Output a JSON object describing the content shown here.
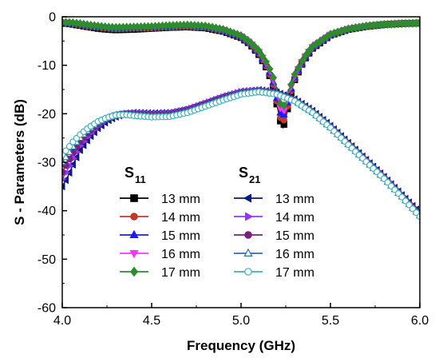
{
  "chart_data": {
    "type": "line",
    "title": "",
    "xlabel": "Frequency (GHz)",
    "ylabel": "S - Parameters (dB)",
    "xlim": [
      4.0,
      6.0
    ],
    "ylim": [
      -60,
      0
    ],
    "xticks": [
      4.0,
      4.5,
      5.0,
      5.5,
      6.0
    ],
    "xtick_labels": [
      "4.0",
      "4.5",
      "5.0",
      "5.5",
      "6.0"
    ],
    "yticks": [
      0,
      -10,
      -20,
      -30,
      -40,
      -50,
      -60
    ],
    "ytick_labels": [
      "0",
      "-10",
      "-20",
      "-30",
      "-40",
      "-50",
      "-60"
    ],
    "grid": false,
    "legend_position": "lower-center",
    "legend_groups": [
      {
        "title_main": "S",
        "title_sub": "11"
      },
      {
        "title_main": "S",
        "title_sub": "21"
      }
    ],
    "series": [
      {
        "name": "13 mm",
        "group": "S11",
        "color": "#000000",
        "marker": "square",
        "fill": true,
        "points": [
          [
            4.0,
            -1.3
          ],
          [
            4.05,
            -1.5
          ],
          [
            4.1,
            -1.8
          ],
          [
            4.15,
            -2.1
          ],
          [
            4.2,
            -2.4
          ],
          [
            4.25,
            -2.6
          ],
          [
            4.3,
            -2.7
          ],
          [
            4.4,
            -2.6
          ],
          [
            4.5,
            -2.4
          ],
          [
            4.6,
            -2.2
          ],
          [
            4.7,
            -2.1
          ],
          [
            4.8,
            -2.3
          ],
          [
            4.9,
            -3.0
          ],
          [
            5.0,
            -4.3
          ],
          [
            5.05,
            -5.6
          ],
          [
            5.1,
            -7.8
          ],
          [
            5.15,
            -11.0
          ],
          [
            5.18,
            -14.5
          ],
          [
            5.2,
            -18.0
          ],
          [
            5.22,
            -21.5
          ],
          [
            5.235,
            -22.8
          ],
          [
            5.25,
            -21.0
          ],
          [
            5.27,
            -17.0
          ],
          [
            5.3,
            -13.0
          ],
          [
            5.35,
            -9.0
          ],
          [
            5.4,
            -6.5
          ],
          [
            5.5,
            -3.8
          ],
          [
            5.6,
            -2.6
          ],
          [
            5.7,
            -2.0
          ],
          [
            5.8,
            -1.6
          ],
          [
            5.9,
            -1.4
          ],
          [
            6.0,
            -1.3
          ]
        ]
      },
      {
        "name": "14 mm",
        "group": "S11",
        "color": "#c0392b",
        "marker": "circle",
        "fill": true,
        "points": [
          [
            4.0,
            -1.2
          ],
          [
            4.05,
            -1.4
          ],
          [
            4.1,
            -1.7
          ],
          [
            4.15,
            -2.0
          ],
          [
            4.2,
            -2.2
          ],
          [
            4.25,
            -2.4
          ],
          [
            4.3,
            -2.5
          ],
          [
            4.4,
            -2.4
          ],
          [
            4.5,
            -2.3
          ],
          [
            4.6,
            -2.1
          ],
          [
            4.7,
            -2.0
          ],
          [
            4.8,
            -2.2
          ],
          [
            4.9,
            -2.9
          ],
          [
            5.0,
            -4.2
          ],
          [
            5.05,
            -5.5
          ],
          [
            5.1,
            -7.6
          ],
          [
            5.15,
            -10.8
          ],
          [
            5.18,
            -14.0
          ],
          [
            5.2,
            -17.4
          ],
          [
            5.22,
            -20.8
          ],
          [
            5.235,
            -21.8
          ],
          [
            5.25,
            -20.3
          ],
          [
            5.27,
            -16.6
          ],
          [
            5.3,
            -12.8
          ],
          [
            5.35,
            -8.9
          ],
          [
            5.4,
            -6.4
          ],
          [
            5.5,
            -3.8
          ],
          [
            5.6,
            -2.6
          ],
          [
            5.7,
            -2.0
          ],
          [
            5.8,
            -1.6
          ],
          [
            5.9,
            -1.4
          ],
          [
            6.0,
            -1.3
          ]
        ]
      },
      {
        "name": "15 mm",
        "group": "S11",
        "color": "#1a1aff",
        "marker": "triangle-up",
        "fill": true,
        "points": [
          [
            4.0,
            -1.2
          ],
          [
            4.05,
            -1.4
          ],
          [
            4.1,
            -1.6
          ],
          [
            4.15,
            -1.9
          ],
          [
            4.2,
            -2.1
          ],
          [
            4.25,
            -2.3
          ],
          [
            4.3,
            -2.4
          ],
          [
            4.4,
            -2.3
          ],
          [
            4.5,
            -2.2
          ],
          [
            4.6,
            -2.0
          ],
          [
            4.7,
            -1.9
          ],
          [
            4.8,
            -2.1
          ],
          [
            4.9,
            -2.8
          ],
          [
            5.0,
            -4.1
          ],
          [
            5.05,
            -5.4
          ],
          [
            5.1,
            -7.4
          ],
          [
            5.15,
            -10.5
          ],
          [
            5.18,
            -13.5
          ],
          [
            5.2,
            -16.8
          ],
          [
            5.22,
            -19.8
          ],
          [
            5.235,
            -20.6
          ],
          [
            5.25,
            -19.4
          ],
          [
            5.27,
            -16.0
          ],
          [
            5.3,
            -12.5
          ],
          [
            5.35,
            -8.8
          ],
          [
            5.4,
            -6.3
          ],
          [
            5.5,
            -3.7
          ],
          [
            5.6,
            -2.5
          ],
          [
            5.7,
            -1.9
          ],
          [
            5.8,
            -1.6
          ],
          [
            5.9,
            -1.4
          ],
          [
            6.0,
            -1.3
          ]
        ]
      },
      {
        "name": "16 mm",
        "group": "S11",
        "color": "#ff33ff",
        "marker": "triangle-down",
        "fill": true,
        "points": [
          [
            4.0,
            -1.1
          ],
          [
            4.05,
            -1.3
          ],
          [
            4.1,
            -1.5
          ],
          [
            4.15,
            -1.8
          ],
          [
            4.2,
            -2.0
          ],
          [
            4.25,
            -2.2
          ],
          [
            4.3,
            -2.3
          ],
          [
            4.4,
            -2.2
          ],
          [
            4.5,
            -2.1
          ],
          [
            4.6,
            -1.9
          ],
          [
            4.7,
            -1.8
          ],
          [
            4.8,
            -2.0
          ],
          [
            4.9,
            -2.7
          ],
          [
            5.0,
            -4.0
          ],
          [
            5.05,
            -5.3
          ],
          [
            5.1,
            -7.2
          ],
          [
            5.15,
            -10.2
          ],
          [
            5.18,
            -13.0
          ],
          [
            5.2,
            -16.0
          ],
          [
            5.22,
            -18.8
          ],
          [
            5.235,
            -19.6
          ],
          [
            5.25,
            -18.6
          ],
          [
            5.27,
            -15.5
          ],
          [
            5.3,
            -12.2
          ],
          [
            5.35,
            -8.6
          ],
          [
            5.4,
            -6.2
          ],
          [
            5.5,
            -3.7
          ],
          [
            5.6,
            -2.5
          ],
          [
            5.7,
            -1.9
          ],
          [
            5.8,
            -1.6
          ],
          [
            5.9,
            -1.4
          ],
          [
            6.0,
            -1.3
          ]
        ]
      },
      {
        "name": "17 mm",
        "group": "S11",
        "color": "#2e8b2e",
        "marker": "diamond",
        "fill": true,
        "points": [
          [
            4.0,
            -1.1
          ],
          [
            4.05,
            -1.2
          ],
          [
            4.1,
            -1.4
          ],
          [
            4.15,
            -1.7
          ],
          [
            4.2,
            -1.9
          ],
          [
            4.25,
            -2.1
          ],
          [
            4.3,
            -2.2
          ],
          [
            4.4,
            -2.1
          ],
          [
            4.5,
            -2.0
          ],
          [
            4.6,
            -1.8
          ],
          [
            4.7,
            -1.7
          ],
          [
            4.8,
            -1.9
          ],
          [
            4.9,
            -2.6
          ],
          [
            5.0,
            -3.9
          ],
          [
            5.05,
            -5.2
          ],
          [
            5.1,
            -7.0
          ],
          [
            5.15,
            -9.9
          ],
          [
            5.18,
            -12.5
          ],
          [
            5.2,
            -15.3
          ],
          [
            5.22,
            -17.9
          ],
          [
            5.235,
            -18.6
          ],
          [
            5.25,
            -17.8
          ],
          [
            5.27,
            -15.0
          ],
          [
            5.3,
            -11.9
          ],
          [
            5.35,
            -8.5
          ],
          [
            5.4,
            -6.1
          ],
          [
            5.5,
            -3.6
          ],
          [
            5.6,
            -2.5
          ],
          [
            5.7,
            -1.9
          ],
          [
            5.8,
            -1.6
          ],
          [
            5.9,
            -1.4
          ],
          [
            6.0,
            -1.3
          ]
        ]
      },
      {
        "name": "13 mm",
        "group": "S21",
        "color": "#0d1a80",
        "marker": "triangle-left",
        "fill": true,
        "points": [
          [
            4.0,
            -35.0
          ],
          [
            4.03,
            -33.0
          ],
          [
            4.06,
            -30.5
          ],
          [
            4.1,
            -27.5
          ],
          [
            4.15,
            -25.0
          ],
          [
            4.2,
            -23.0
          ],
          [
            4.25,
            -21.5
          ],
          [
            4.3,
            -20.6
          ],
          [
            4.35,
            -20.0
          ],
          [
            4.4,
            -19.8
          ],
          [
            4.5,
            -19.9
          ],
          [
            4.6,
            -19.8
          ],
          [
            4.7,
            -19.0
          ],
          [
            4.8,
            -17.7
          ],
          [
            4.9,
            -16.4
          ],
          [
            5.0,
            -15.4
          ],
          [
            5.1,
            -15.1
          ],
          [
            5.2,
            -15.6
          ],
          [
            5.3,
            -17.0
          ],
          [
            5.4,
            -19.4
          ],
          [
            5.5,
            -22.5
          ],
          [
            5.6,
            -26.0
          ],
          [
            5.7,
            -29.5
          ],
          [
            5.8,
            -33.0
          ],
          [
            5.9,
            -36.8
          ],
          [
            6.0,
            -40.5
          ]
        ]
      },
      {
        "name": "14 mm",
        "group": "S21",
        "color": "#9933ff",
        "marker": "triangle-right",
        "fill": true,
        "points": [
          [
            4.0,
            -33.5
          ],
          [
            4.03,
            -31.5
          ],
          [
            4.06,
            -29.2
          ],
          [
            4.1,
            -26.6
          ],
          [
            4.15,
            -24.3
          ],
          [
            4.2,
            -22.5
          ],
          [
            4.25,
            -21.2
          ],
          [
            4.3,
            -20.4
          ],
          [
            4.35,
            -20.0
          ],
          [
            4.4,
            -19.9
          ],
          [
            4.5,
            -20.1
          ],
          [
            4.6,
            -20.0
          ],
          [
            4.7,
            -19.2
          ],
          [
            4.8,
            -17.9
          ],
          [
            4.9,
            -16.6
          ],
          [
            5.0,
            -15.5
          ],
          [
            5.1,
            -15.2
          ],
          [
            5.2,
            -15.7
          ],
          [
            5.3,
            -17.1
          ],
          [
            5.4,
            -19.5
          ],
          [
            5.5,
            -22.6
          ],
          [
            5.6,
            -26.1
          ],
          [
            5.7,
            -29.6
          ],
          [
            5.8,
            -33.1
          ],
          [
            5.9,
            -36.9
          ],
          [
            6.0,
            -40.7
          ]
        ]
      },
      {
        "name": "15 mm",
        "group": "S21",
        "color": "#7a1f7a",
        "marker": "circle",
        "fill": true,
        "points": [
          [
            4.0,
            -32.0
          ],
          [
            4.03,
            -30.0
          ],
          [
            4.06,
            -28.0
          ],
          [
            4.1,
            -25.8
          ],
          [
            4.15,
            -23.7
          ],
          [
            4.2,
            -22.1
          ],
          [
            4.25,
            -21.0
          ],
          [
            4.3,
            -20.3
          ],
          [
            4.35,
            -20.0
          ],
          [
            4.4,
            -20.0
          ],
          [
            4.5,
            -20.3
          ],
          [
            4.6,
            -20.2
          ],
          [
            4.7,
            -19.4
          ],
          [
            4.8,
            -18.1
          ],
          [
            4.9,
            -16.8
          ],
          [
            5.0,
            -15.7
          ],
          [
            5.1,
            -15.3
          ],
          [
            5.2,
            -15.8
          ],
          [
            5.3,
            -17.2
          ],
          [
            5.4,
            -19.6
          ],
          [
            5.5,
            -22.7
          ],
          [
            5.6,
            -26.2
          ],
          [
            5.7,
            -29.7
          ],
          [
            5.8,
            -33.2
          ],
          [
            5.9,
            -37.0
          ],
          [
            6.0,
            -40.8
          ]
        ]
      },
      {
        "name": "16 mm",
        "group": "S21",
        "color": "#2c6fb3",
        "marker": "triangle-up",
        "fill": false,
        "points": [
          [
            4.0,
            -30.0
          ],
          [
            4.03,
            -28.5
          ],
          [
            4.06,
            -26.8
          ],
          [
            4.1,
            -25.0
          ],
          [
            4.15,
            -23.2
          ],
          [
            4.2,
            -21.8
          ],
          [
            4.25,
            -20.9
          ],
          [
            4.3,
            -20.3
          ],
          [
            4.35,
            -20.1
          ],
          [
            4.4,
            -20.2
          ],
          [
            4.5,
            -20.5
          ],
          [
            4.6,
            -20.4
          ],
          [
            4.7,
            -19.6
          ],
          [
            4.8,
            -18.3
          ],
          [
            4.9,
            -17.0
          ],
          [
            5.0,
            -15.8
          ],
          [
            5.1,
            -15.4
          ],
          [
            5.2,
            -15.9
          ],
          [
            5.3,
            -17.3
          ],
          [
            5.4,
            -19.7
          ],
          [
            5.5,
            -22.8
          ],
          [
            5.6,
            -26.3
          ],
          [
            5.7,
            -29.8
          ],
          [
            5.8,
            -33.3
          ],
          [
            5.9,
            -37.1
          ],
          [
            6.0,
            -41.0
          ]
        ]
      },
      {
        "name": "17 mm",
        "group": "S21",
        "color": "#3fb3b8",
        "marker": "circle",
        "fill": false,
        "points": [
          [
            4.0,
            -28.5
          ],
          [
            4.03,
            -27.2
          ],
          [
            4.06,
            -25.8
          ],
          [
            4.1,
            -24.3
          ],
          [
            4.15,
            -22.8
          ],
          [
            4.2,
            -21.6
          ],
          [
            4.25,
            -20.8
          ],
          [
            4.3,
            -20.3
          ],
          [
            4.35,
            -20.2
          ],
          [
            4.4,
            -20.4
          ],
          [
            4.5,
            -20.7
          ],
          [
            4.6,
            -20.6
          ],
          [
            4.7,
            -19.8
          ],
          [
            4.8,
            -18.5
          ],
          [
            4.9,
            -17.2
          ],
          [
            5.0,
            -16.0
          ],
          [
            5.1,
            -15.5
          ],
          [
            5.2,
            -16.0
          ],
          [
            5.3,
            -17.4
          ],
          [
            5.4,
            -19.8
          ],
          [
            5.5,
            -22.9
          ],
          [
            5.6,
            -26.4
          ],
          [
            5.7,
            -29.9
          ],
          [
            5.8,
            -33.4
          ],
          [
            5.9,
            -37.2
          ],
          [
            6.0,
            -41.2
          ]
        ]
      }
    ]
  }
}
